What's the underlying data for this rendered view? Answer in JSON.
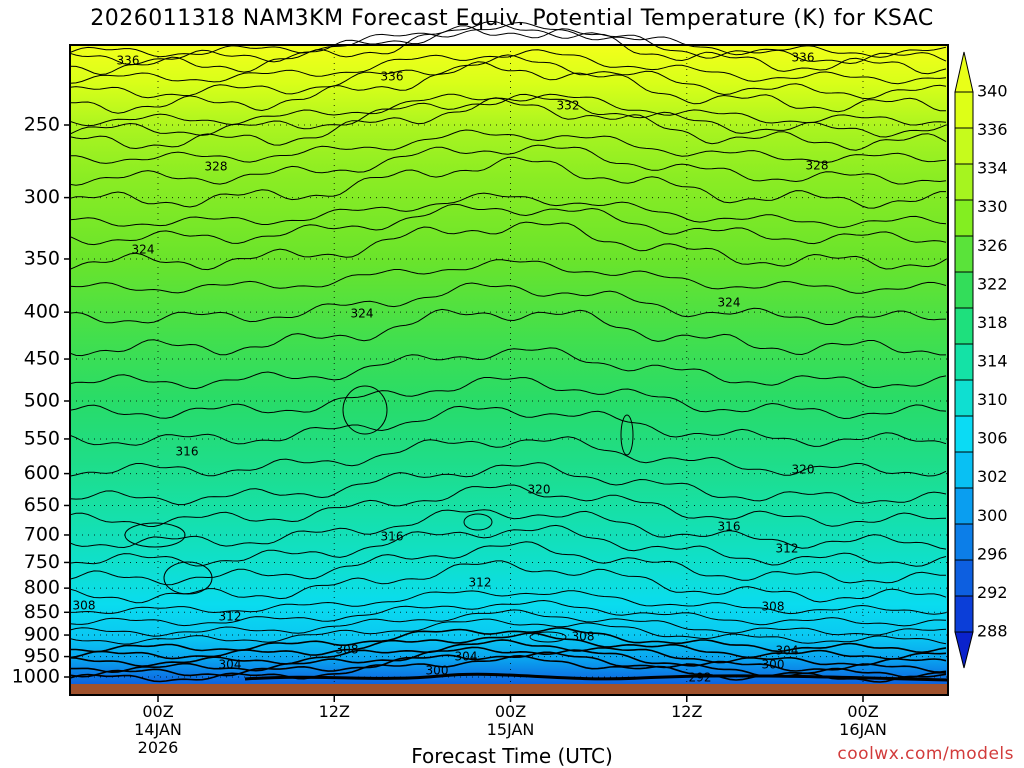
{
  "title": "2026011318 NAM3KM Forecast Equiv. Potential Temperature (K) for KSAC",
  "credit": "coolwx.com/models",
  "chart_data": {
    "type": "contour",
    "xlabel": "Forecast Time (UTC)",
    "x_ticks": [
      {
        "line1": "00Z",
        "line2": "14JAN",
        "line3": "2026",
        "hour": 0
      },
      {
        "line1": "12Z",
        "line2": "",
        "line3": "",
        "hour": 12
      },
      {
        "line1": "00Z",
        "line2": "15JAN",
        "line3": "",
        "hour": 24
      },
      {
        "line1": "12Z",
        "line2": "",
        "line3": "",
        "hour": 36
      },
      {
        "line1": "00Z",
        "line2": "16JAN",
        "line3": "",
        "hour": 48
      }
    ],
    "xlim": [
      -6,
      54
    ],
    "y_unit": "hPa",
    "y_ticks": [
      250,
      300,
      350,
      400,
      450,
      500,
      550,
      600,
      650,
      700,
      750,
      800,
      850,
      900,
      950,
      1000
    ],
    "ylim": [
      200,
      1013
    ],
    "colorbar": {
      "labels": [
        340,
        336,
        334,
        330,
        326,
        322,
        318,
        314,
        310,
        306,
        302,
        300,
        296,
        292,
        288
      ],
      "colors": [
        "#e9ff18",
        "#ddff17",
        "#c6fb1c",
        "#a6f41f",
        "#83ee21",
        "#5ae33a",
        "#33dd5a",
        "#1ee07d",
        "#14e2a6",
        "#0fdfd1",
        "#0bdbf4",
        "#09c0f3",
        "#0a9ef0",
        "#0c7ee8",
        "#0d5fe0",
        "#0b3ed8",
        "#0a22cc"
      ]
    },
    "contour_labels": [
      "336",
      "336",
      "336",
      "332",
      "328",
      "328",
      "324",
      "324",
      "324",
      "320",
      "320",
      "316",
      "316",
      "316",
      "312",
      "312",
      "312",
      "308",
      "308",
      "308",
      "308",
      "304",
      "304",
      "304",
      "300",
      "300",
      "292"
    ],
    "ground_color": "#a0522d"
  }
}
